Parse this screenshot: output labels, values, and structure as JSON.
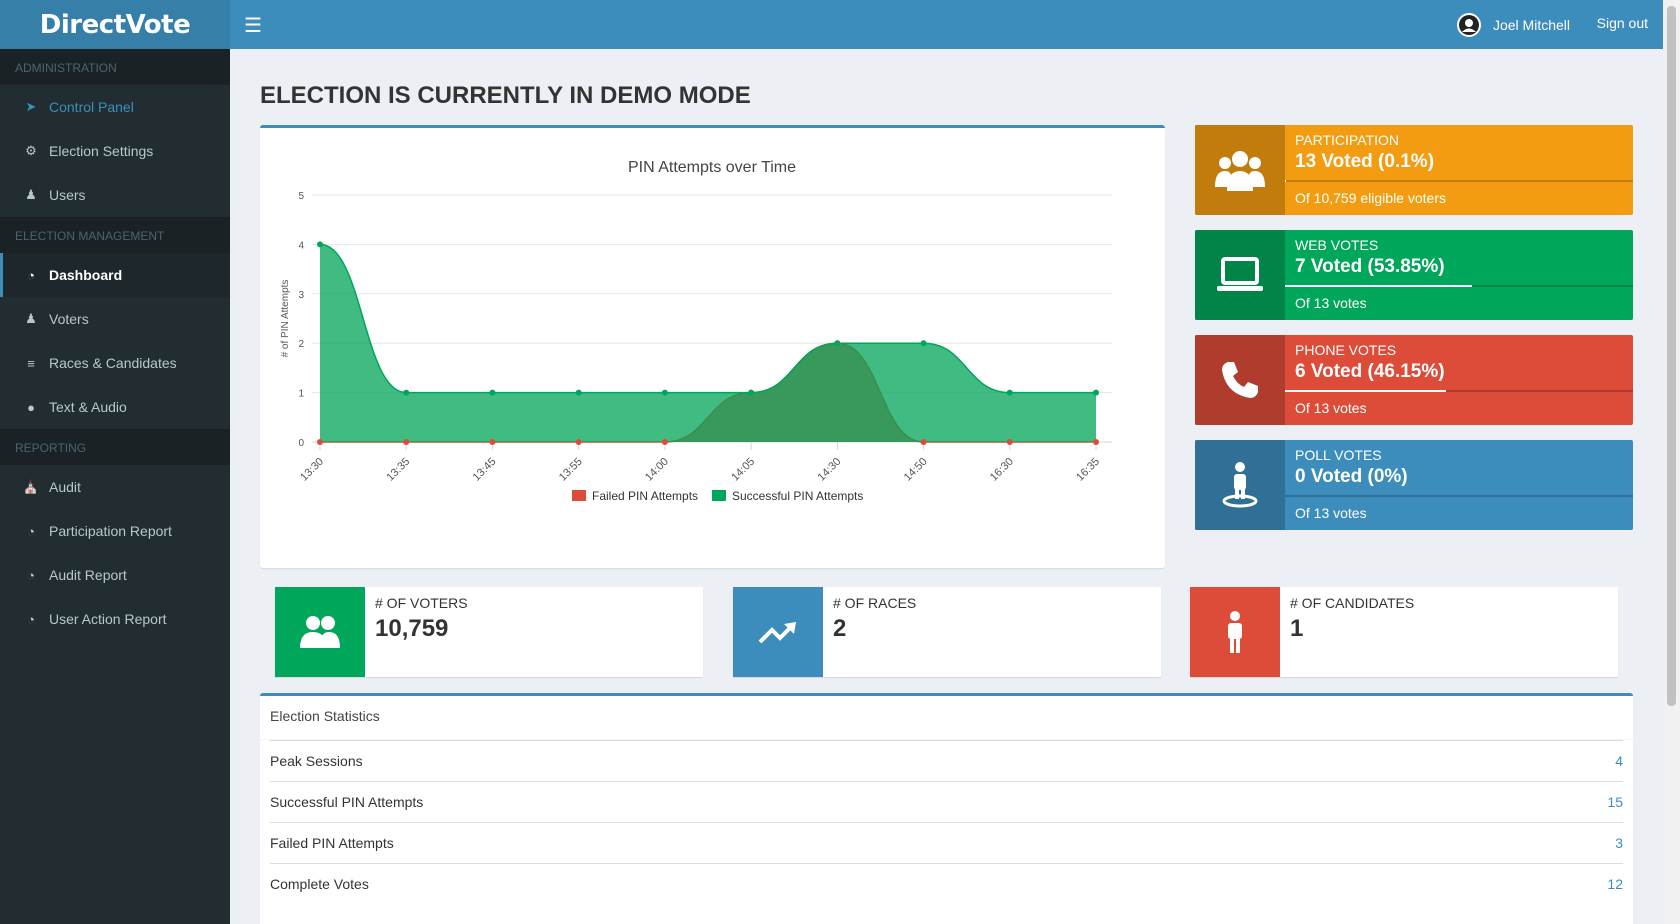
{
  "app": {
    "logo": "DirectVote",
    "user_name": "Joel Mitchell",
    "signout": "Sign out"
  },
  "sidebar": {
    "sections": [
      {
        "header": "ADMINISTRATION",
        "items": [
          {
            "label": "Control Panel",
            "icon": "rocket-icon"
          },
          {
            "label": "Election Settings",
            "icon": "gears-icon"
          },
          {
            "label": "Users",
            "icon": "users-icon"
          }
        ]
      },
      {
        "header": "ELECTION MANAGEMENT",
        "items": [
          {
            "label": "Dashboard",
            "icon": "dashboard-icon"
          },
          {
            "label": "Voters",
            "icon": "user-icon"
          },
          {
            "label": "Races & Candidates",
            "icon": "sliders-icon"
          },
          {
            "label": "Text & Audio",
            "icon": "microphone-icon"
          }
        ]
      },
      {
        "header": "REPORTING",
        "items": [
          {
            "label": "Audit",
            "icon": "bank-icon"
          },
          {
            "label": "Participation Report",
            "icon": "pie-chart-icon"
          },
          {
            "label": "Audit Report",
            "icon": "pie-chart-icon"
          },
          {
            "label": "User Action Report",
            "icon": "pie-chart-icon"
          }
        ]
      }
    ]
  },
  "main": {
    "title": "ELECTION IS CURRENTLY IN DEMO MODE"
  },
  "chart_data": {
    "type": "area",
    "title": "PIN Attempts over Time",
    "xlabel": "",
    "ylabel": "# of PIN Attempts",
    "categories": [
      "13:30",
      "13:35",
      "13:45",
      "13:55",
      "14:00",
      "14:05",
      "14:30",
      "14:50",
      "16:30",
      "16:35"
    ],
    "series": [
      {
        "name": "Failed PIN Attempts",
        "color": "#dd4b39",
        "values": [
          0,
          0,
          0,
          0,
          0,
          1,
          2,
          0,
          0,
          0
        ]
      },
      {
        "name": "Successful PIN Attempts",
        "color": "#00a65a",
        "values": [
          4,
          1,
          1,
          1,
          1,
          1,
          2,
          2,
          1,
          1
        ]
      }
    ],
    "ylim": [
      0,
      5
    ],
    "yticks": [
      0,
      1,
      2,
      3,
      4,
      5
    ],
    "grid": true,
    "legend": "bottom"
  },
  "info_boxes": [
    {
      "label": "PARTICIPATION",
      "number": "13 Voted (0.1%)",
      "progress": 0.001,
      "desc": "Of 10,759 eligible voters",
      "color": "#f39c12",
      "icon": "users-icon"
    },
    {
      "label": "WEB VOTES",
      "number": "7 Voted (53.85%)",
      "progress": 0.5385,
      "desc": "Of 13 votes",
      "color": "#00a65a",
      "icon": "laptop-icon"
    },
    {
      "label": "PHONE VOTES",
      "number": "6 Voted (46.15%)",
      "progress": 0.4615,
      "desc": "Of 13 votes",
      "color": "#dd4b39",
      "icon": "phone-icon"
    },
    {
      "label": "POLL VOTES",
      "number": "0 Voted (0%)",
      "progress": 0.0,
      "desc": "Of 13 votes",
      "color": "#3c8dbc",
      "icon": "poll-person-icon"
    }
  ],
  "small_boxes": [
    {
      "label": "# OF VOTERS",
      "number": "10,759",
      "color": "#00a65a",
      "icon": "voters-icon"
    },
    {
      "label": "# OF RACES",
      "number": "2",
      "color": "#3c8dbc",
      "icon": "trend-up-icon"
    },
    {
      "label": "# OF CANDIDATES",
      "number": "1",
      "color": "#dd4b39",
      "icon": "person-icon"
    }
  ],
  "stats": {
    "title": "Election Statistics",
    "rows": [
      {
        "label": "Peak Sessions",
        "value": "4"
      },
      {
        "label": "Successful PIN Attempts",
        "value": "15"
      },
      {
        "label": "Failed PIN Attempts",
        "value": "3"
      },
      {
        "label": "Complete Votes",
        "value": "12"
      }
    ]
  }
}
